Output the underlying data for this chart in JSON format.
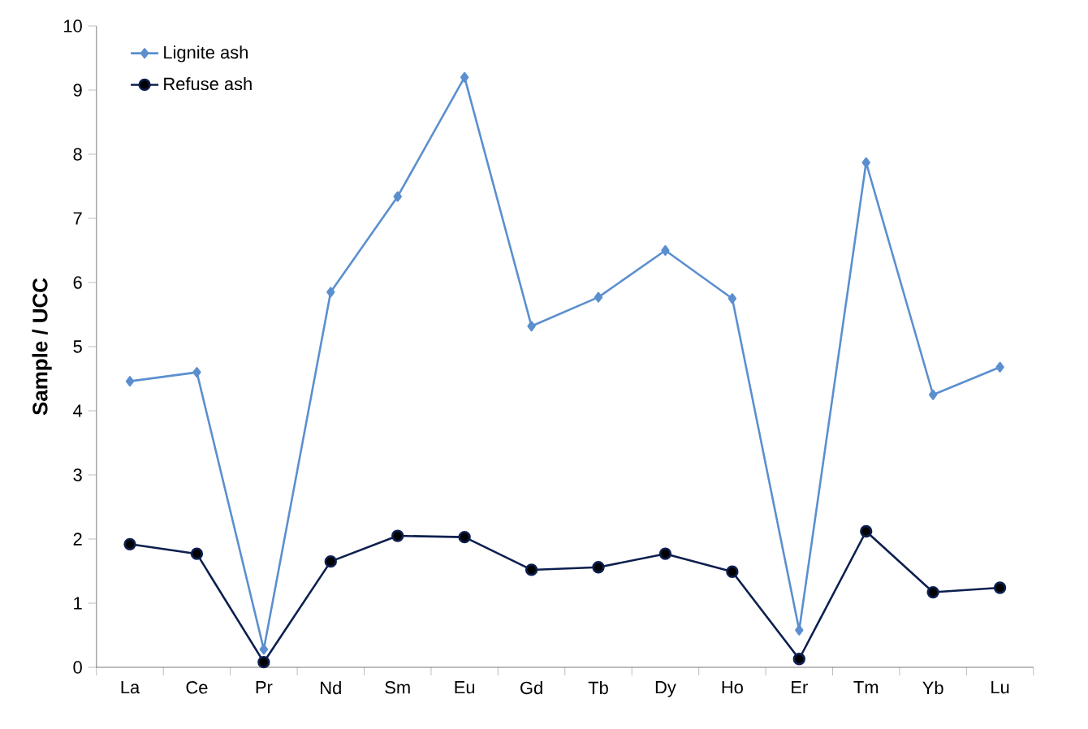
{
  "chart_data": {
    "type": "line",
    "ylabel": "Sample / UCC",
    "categories": [
      "La",
      "Ce",
      "Pr",
      "Nd",
      "Sm",
      "Eu",
      "Gd",
      "Tb",
      "Dy",
      "Ho",
      "Er",
      "Tm",
      "Yb",
      "Lu"
    ],
    "series": [
      {
        "name": "Lignite ash",
        "color": "#5b8fcf",
        "marker": "diamond",
        "values": [
          4.46,
          4.6,
          0.28,
          5.85,
          7.34,
          9.2,
          5.32,
          5.77,
          6.5,
          5.75,
          0.58,
          7.87,
          4.25,
          4.68
        ]
      },
      {
        "name": "Refuse ash",
        "color": "#0d1f4f",
        "marker": "circle",
        "values": [
          1.92,
          1.77,
          0.08,
          1.65,
          2.05,
          2.03,
          1.52,
          1.56,
          1.77,
          1.49,
          0.13,
          2.12,
          1.17,
          1.24
        ]
      }
    ],
    "ylim": [
      0,
      10
    ],
    "yticks": [
      0,
      1,
      2,
      3,
      4,
      5,
      6,
      7,
      8,
      9,
      10
    ],
    "grid": false,
    "legend": "top left",
    "line_style": "solid"
  }
}
